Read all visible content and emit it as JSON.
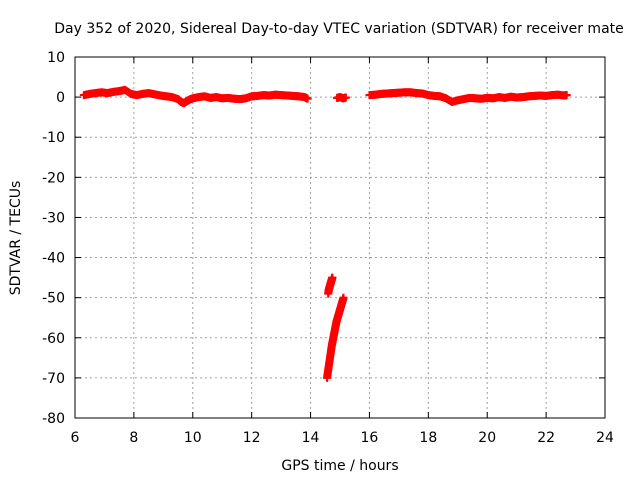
{
  "chart_data": {
    "type": "scatter",
    "title": "Day 352 of 2020, Sidereal Day-to-day VTEC variation (SDTVAR) for receiver mate",
    "xlabel": "GPS time / hours",
    "ylabel": "SDTVAR / TECUs",
    "xlim": [
      6,
      24
    ],
    "ylim": [
      -80,
      10
    ],
    "xticks": [
      6,
      8,
      10,
      12,
      14,
      16,
      18,
      20,
      22,
      24
    ],
    "yticks": [
      10,
      0,
      -10,
      -20,
      -30,
      -40,
      -50,
      -60,
      -70,
      -80
    ],
    "grid": true,
    "legend": "none",
    "marker_color": "#ff0000",
    "marker": "plus",
    "series": [
      {
        "segments": [
          {
            "x": [
              6.3,
              6.5,
              6.7,
              6.9,
              7.1,
              7.3,
              7.5,
              7.7,
              7.9,
              8.1,
              8.3,
              8.5,
              8.7,
              8.9,
              9.1,
              9.3,
              9.5,
              9.6,
              9.7,
              9.8,
              9.9,
              10.0,
              10.2,
              10.4,
              10.6,
              10.8,
              11.0,
              11.2,
              11.4,
              11.6,
              11.8,
              12.0,
              12.2,
              12.4,
              12.6,
              12.8,
              13.0,
              13.2,
              13.4,
              13.6,
              13.8,
              13.9
            ],
            "y": [
              0.5,
              0.8,
              1.0,
              1.2,
              1.0,
              1.3,
              1.5,
              1.8,
              0.8,
              0.5,
              0.8,
              1.0,
              0.7,
              0.4,
              0.2,
              0.0,
              -0.5,
              -1.2,
              -1.5,
              -1.0,
              -0.6,
              -0.3,
              0.0,
              0.2,
              -0.2,
              0.0,
              -0.3,
              -0.2,
              -0.4,
              -0.5,
              -0.3,
              0.2,
              0.3,
              0.5,
              0.4,
              0.6,
              0.5,
              0.4,
              0.3,
              0.2,
              0.0,
              -0.4
            ]
          },
          {
            "x": [
              14.9,
              15.0,
              15.1,
              15.2
            ],
            "y": [
              -0.2,
              0.0,
              -0.3,
              -0.1
            ]
          },
          {
            "x": [
              16.0,
              16.2,
              16.4,
              16.6,
              16.8,
              17.0,
              17.2,
              17.4,
              17.6,
              17.8,
              18.0,
              18.2,
              18.4,
              18.6,
              18.8,
              19.0,
              19.2,
              19.4,
              19.6,
              19.8,
              20.0,
              20.2,
              20.4,
              20.6,
              20.8,
              21.0,
              21.2,
              21.4,
              21.6,
              21.8,
              22.0,
              22.2,
              22.4,
              22.6,
              22.7
            ],
            "y": [
              0.5,
              0.6,
              0.8,
              0.9,
              1.0,
              1.1,
              1.2,
              1.2,
              1.0,
              0.9,
              0.5,
              0.3,
              0.2,
              -0.3,
              -1.2,
              -0.8,
              -0.5,
              -0.2,
              -0.3,
              -0.4,
              -0.2,
              -0.3,
              0.0,
              -0.2,
              0.1,
              -0.1,
              0.0,
              0.2,
              0.3,
              0.4,
              0.3,
              0.5,
              0.6,
              0.4,
              0.5
            ]
          },
          {
            "x": [
              14.6,
              14.62,
              14.64,
              14.66,
              14.68,
              14.7,
              14.72,
              14.74
            ],
            "y": [
              -49,
              -48,
              -47.5,
              -47,
              -46.5,
              -46,
              -45.5,
              -45
            ]
          },
          {
            "x": [
              14.56,
              14.6,
              14.64,
              14.68,
              14.72,
              14.76,
              14.8,
              14.84,
              14.88,
              14.92,
              14.96,
              15.0,
              15.04,
              15.08,
              15.12
            ],
            "y": [
              -70,
              -68,
              -66,
              -64,
              -62,
              -60.5,
              -59,
              -57.5,
              -56,
              -55,
              -54,
              -53,
              -52,
              -51,
              -50
            ]
          }
        ]
      }
    ]
  }
}
